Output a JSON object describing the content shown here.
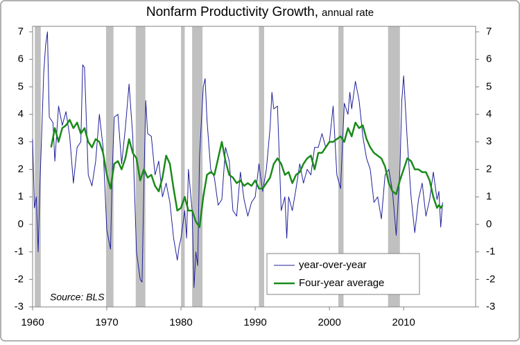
{
  "chart_data": {
    "type": "line",
    "title": "Nonfarm Productivity Growth,",
    "subtitle": "annual rate",
    "annotation": "Source: BLS",
    "xlim": [
      1960,
      2019.7
    ],
    "xticks": [
      1960,
      1970,
      1980,
      1990,
      2000,
      2010
    ],
    "ylim": [
      -3,
      7.2
    ],
    "yticks": [
      -3,
      -2,
      -1,
      0,
      1,
      2,
      3,
      4,
      5,
      6,
      7
    ],
    "y2lim": [
      -3,
      7.2
    ],
    "y2ticks": [
      -3,
      -2,
      -1,
      0,
      1,
      2,
      3,
      4,
      5,
      6,
      7
    ],
    "recession_color": "#c0c0c0",
    "recessions": [
      [
        1960.3,
        1961.1
      ],
      [
        1969.9,
        1970.9
      ],
      [
        1973.9,
        1975.2
      ],
      [
        1980.0,
        1980.5
      ],
      [
        1981.5,
        1982.9
      ],
      [
        1990.5,
        1991.2
      ],
      [
        2001.2,
        2001.9
      ],
      [
        2007.9,
        2009.5
      ]
    ],
    "legend": "lower-right",
    "series": [
      {
        "name": "year-over-year",
        "color": "#1f1f9a",
        "width": 1,
        "x": [
          1960,
          1960.25,
          1960.5,
          1960.75,
          1961,
          1961.25,
          1961.5,
          1961.75,
          1962,
          1962.25,
          1962.5,
          1962.75,
          1963,
          1963.5,
          1964,
          1964.5,
          1965,
          1965.5,
          1966,
          1966.5,
          1966.75,
          1967,
          1967.5,
          1968,
          1968.5,
          1969,
          1969.5,
          1970,
          1970.5,
          1970.75,
          1971,
          1971.5,
          1972,
          1972.5,
          1973,
          1973.5,
          1974,
          1974.5,
          1974.75,
          1975,
          1975.25,
          1975.5,
          1976,
          1976.5,
          1977,
          1977.5,
          1978,
          1978.5,
          1979,
          1979.5,
          1979.75,
          1980,
          1980.5,
          1980.75,
          1981,
          1981.5,
          1981.75,
          1982,
          1982.25,
          1982.5,
          1983,
          1983.25,
          1983.5,
          1984,
          1984.5,
          1985,
          1985.5,
          1986,
          1986.5,
          1987,
          1987.5,
          1988,
          1988.5,
          1989,
          1989.5,
          1990,
          1990.5,
          1991,
          1991.5,
          1992,
          1992.25,
          1992.5,
          1993,
          1993.5,
          1994,
          1994.25,
          1994.5,
          1995,
          1995.5,
          1996,
          1996.5,
          1997,
          1997.5,
          1998,
          1998.5,
          1999,
          1999.5,
          2000,
          2000.5,
          2001,
          2001.5,
          2002,
          2002.5,
          2002.75,
          2003,
          2003.5,
          2004,
          2004.5,
          2005,
          2005.5,
          2006,
          2006.5,
          2007,
          2007.5,
          2008,
          2008.5,
          2009,
          2009.5,
          2009.75,
          2010,
          2010.5,
          2011,
          2011.5,
          2012,
          2012.5,
          2013,
          2013.5,
          2014,
          2014.5,
          2014.75,
          2015,
          2015.25
        ],
        "values": [
          3.1,
          0.6,
          1.0,
          -1.0,
          1.5,
          3.5,
          5.5,
          6.5,
          7.0,
          3.9,
          3.8,
          3.7,
          2.3,
          4.3,
          3.6,
          4.1,
          3.2,
          1.5,
          2.8,
          3.0,
          5.8,
          5.7,
          1.8,
          1.4,
          2.3,
          4.0,
          2.8,
          -0.2,
          -0.9,
          2.0,
          3.9,
          4.0,
          2.2,
          3.5,
          5.1,
          3.2,
          -1.0,
          -2.0,
          -2.1,
          1.5,
          4.5,
          3.3,
          3.2,
          1.8,
          2.3,
          1.0,
          1.5,
          0.8,
          -0.5,
          -1.3,
          -0.8,
          -0.5,
          0.5,
          -0.5,
          2.0,
          0.5,
          -2.3,
          -1.0,
          -1.5,
          2.5,
          5.0,
          5.3,
          3.8,
          2.0,
          1.7,
          0.7,
          0.9,
          2.8,
          2.3,
          0.5,
          0.3,
          1.9,
          0.9,
          0.3,
          0.8,
          1.0,
          2.2,
          1.2,
          2.0,
          3.5,
          4.8,
          4.2,
          4.3,
          0.5,
          1.0,
          -0.5,
          1.0,
          0.5,
          1.3,
          2.2,
          1.5,
          2.0,
          1.8,
          2.8,
          2.8,
          3.3,
          2.8,
          3.0,
          4.3,
          1.8,
          1.3,
          4.4,
          4.0,
          4.8,
          4.2,
          5.2,
          4.5,
          3.2,
          2.4,
          2.0,
          0.8,
          1.0,
          0.2,
          1.8,
          2.0,
          1.2,
          -0.4,
          2.0,
          4.5,
          5.4,
          3.0,
          1.0,
          -0.3,
          0.9,
          1.5,
          0.3,
          0.9,
          1.9,
          0.9,
          1.2,
          -0.1,
          0.8
        ]
      },
      {
        "name": "Four-year average",
        "color": "#1a8a1a",
        "width": 2.5,
        "x": [
          1962.5,
          1963,
          1963.5,
          1964,
          1964.5,
          1965,
          1965.5,
          1966,
          1966.5,
          1967,
          1967.5,
          1968,
          1968.5,
          1969,
          1969.5,
          1970,
          1970.5,
          1971,
          1971.5,
          1972,
          1972.5,
          1973,
          1973.5,
          1974,
          1974.5,
          1975,
          1975.5,
          1976,
          1976.5,
          1977,
          1977.5,
          1978,
          1978.5,
          1979,
          1979.5,
          1980,
          1980.5,
          1981,
          1981.5,
          1982,
          1982.5,
          1983,
          1983.5,
          1984,
          1984.5,
          1985,
          1985.5,
          1986,
          1986.5,
          1987,
          1987.5,
          1988,
          1988.5,
          1989,
          1989.5,
          1990,
          1990.5,
          1991,
          1991.5,
          1992,
          1992.5,
          1993,
          1993.5,
          1994,
          1994.5,
          1995,
          1995.5,
          1996,
          1996.5,
          1997,
          1997.5,
          1998,
          1998.5,
          1999,
          1999.5,
          2000,
          2000.5,
          2001,
          2001.5,
          2002,
          2002.5,
          2003,
          2003.5,
          2004,
          2004.5,
          2005,
          2005.5,
          2006,
          2006.5,
          2007,
          2007.5,
          2008,
          2008.5,
          2009,
          2009.5,
          2010,
          2010.5,
          2011,
          2011.5,
          2012,
          2012.5,
          2013,
          2013.5,
          2014,
          2014.5,
          2014.75,
          2015,
          2015.25
        ],
        "values": [
          2.8,
          3.5,
          3.0,
          3.5,
          3.6,
          3.8,
          3.5,
          3.7,
          3.3,
          3.5,
          3.0,
          2.8,
          3.1,
          3.0,
          2.6,
          1.8,
          1.3,
          2.2,
          2.3,
          2.0,
          2.4,
          3.1,
          2.6,
          2.4,
          1.6,
          2.0,
          1.7,
          1.8,
          1.4,
          1.2,
          1.7,
          2.5,
          2.2,
          1.3,
          0.5,
          0.6,
          1.0,
          0.5,
          0.5,
          0.1,
          -0.1,
          1.0,
          1.8,
          1.9,
          1.8,
          2.4,
          3.0,
          2.3,
          1.8,
          1.7,
          1.5,
          1.6,
          1.4,
          1.5,
          1.4,
          1.6,
          1.3,
          1.3,
          1.5,
          1.7,
          2.2,
          2.4,
          2.2,
          1.8,
          1.9,
          1.5,
          1.8,
          1.9,
          2.2,
          2.4,
          2.5,
          2.0,
          2.6,
          2.6,
          2.8,
          3.0,
          3.0,
          3.1,
          3.2,
          3.0,
          3.5,
          3.2,
          3.7,
          3.5,
          3.6,
          3.1,
          2.8,
          2.6,
          2.5,
          2.4,
          2.1,
          1.5,
          1.2,
          1.1,
          1.6,
          2.0,
          2.4,
          2.3,
          2.0,
          2.0,
          1.9,
          1.9,
          1.6,
          1.0,
          0.6,
          0.7,
          0.6,
          0.7
        ]
      }
    ]
  }
}
